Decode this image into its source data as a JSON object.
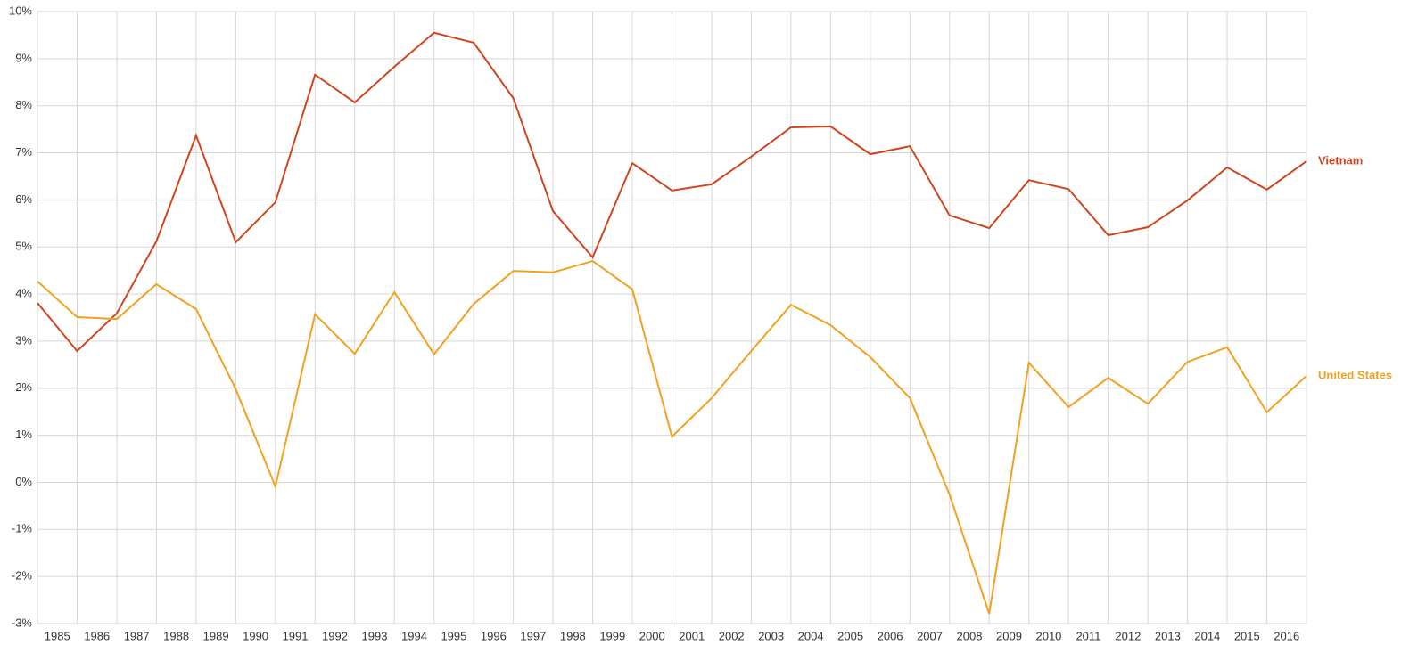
{
  "chart_data": {
    "type": "line",
    "categories": [
      "1985",
      "1986",
      "1987",
      "1988",
      "1989",
      "1990",
      "1991",
      "1992",
      "1993",
      "1994",
      "1995",
      "1996",
      "1997",
      "1998",
      "1999",
      "2000",
      "2001",
      "2002",
      "2003",
      "2004",
      "2005",
      "2006",
      "2007",
      "2008",
      "2009",
      "2010",
      "2011",
      "2012",
      "2013",
      "2014",
      "2015",
      "2016",
      null
    ],
    "series": [
      {
        "name": "Vietnam",
        "color": "#d0451f",
        "values": [
          3.81,
          2.79,
          3.59,
          5.12,
          7.37,
          5.1,
          5.95,
          8.66,
          8.07,
          8.83,
          9.55,
          9.34,
          8.16,
          5.76,
          4.78,
          6.78,
          6.2,
          6.33,
          6.92,
          7.54,
          7.56,
          6.97,
          7.14,
          5.67,
          5.4,
          6.42,
          6.23,
          5.25,
          5.42,
          5.99,
          6.69,
          6.22,
          6.82
        ]
      },
      {
        "name": "United States",
        "color": "#f2a11f",
        "values": [
          4.27,
          3.51,
          3.47,
          4.21,
          3.68,
          1.98,
          -0.09,
          3.57,
          2.73,
          4.04,
          2.72,
          3.79,
          4.49,
          4.46,
          4.7,
          4.1,
          0.97,
          1.79,
          2.79,
          3.77,
          3.34,
          2.66,
          1.79,
          -0.26,
          -2.79,
          2.54,
          1.6,
          2.22,
          1.67,
          2.56,
          2.87,
          1.49,
          2.26
        ]
      }
    ],
    "ylim": [
      -3,
      10
    ],
    "yticks": [
      {
        "value": -3,
        "label": "-3%"
      },
      {
        "value": -2,
        "label": "-2%"
      },
      {
        "value": -1,
        "label": "-1%"
      },
      {
        "value": 0,
        "label": "0%"
      },
      {
        "value": 1,
        "label": "1%"
      },
      {
        "value": 2,
        "label": "2%"
      },
      {
        "value": 3,
        "label": "3%"
      },
      {
        "value": 4,
        "label": "4%"
      },
      {
        "value": 5,
        "label": "5%"
      },
      {
        "value": 6,
        "label": "6%"
      },
      {
        "value": 7,
        "label": "7%"
      },
      {
        "value": 8,
        "label": "8%"
      },
      {
        "value": 9,
        "label": "9%"
      },
      {
        "value": 10,
        "label": "10%"
      }
    ],
    "grid": true
  }
}
